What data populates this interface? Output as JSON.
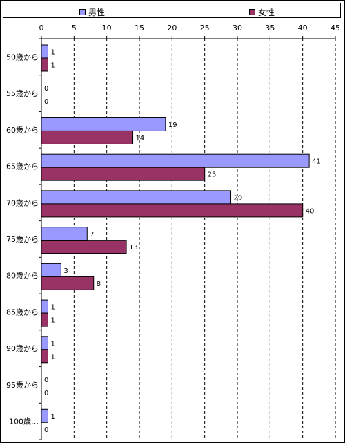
{
  "chart_data": {
    "type": "bar",
    "orientation": "horizontal",
    "categories": [
      "50歳から",
      "55歳から",
      "60歳から",
      "65歳から",
      "70歳から",
      "75歳から",
      "80歳から",
      "85歳から",
      "90歳から",
      "95歳から",
      "100歳…"
    ],
    "series": [
      {
        "name": "男性",
        "color": "#9999ff",
        "values": [
          1,
          0,
          19,
          41,
          29,
          7,
          3,
          1,
          1,
          0,
          1
        ]
      },
      {
        "name": "女性",
        "color": "#993366",
        "values": [
          1,
          0,
          14,
          25,
          40,
          13,
          8,
          1,
          1,
          0,
          0
        ]
      }
    ],
    "xlim": [
      0,
      45
    ],
    "xticks": [
      0,
      5,
      10,
      15,
      20,
      25,
      30,
      35,
      40,
      45
    ],
    "x_axis_position": "top",
    "grid": "vertical-dashed",
    "legend_position": "top",
    "data_labels": true
  }
}
